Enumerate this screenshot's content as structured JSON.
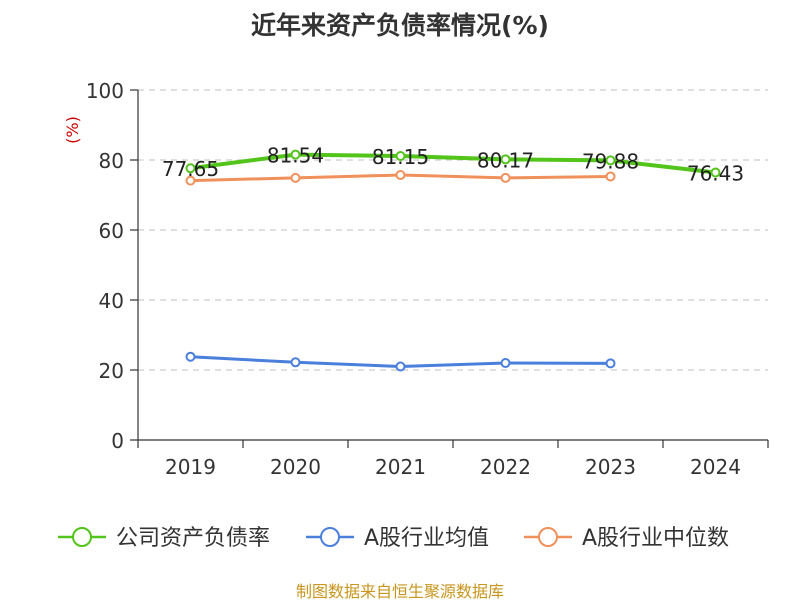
{
  "title": "近年来资产负债率情况(%)",
  "source": "制图数据来自恒生聚源数据库",
  "colors": {
    "company": "#52c41a",
    "industry_avg": "#4a7fdc",
    "industry_median": "#f0905a",
    "grid": "#cccccc",
    "axis": "#333333",
    "unit": "#cc0000",
    "source": "#c8961e"
  },
  "chart_data": {
    "type": "line",
    "title": "近年来资产负债率情况(%)",
    "ylabel": "(%)",
    "xlabel": "",
    "ylim": [
      0,
      100
    ],
    "yticks": [
      "0",
      "20",
      "40",
      "60",
      "80",
      "100"
    ],
    "grid": "horizontal-dashed",
    "legend_position": "bottom",
    "categories": [
      "2019",
      "2020",
      "2021",
      "2022",
      "2023",
      "2024"
    ],
    "series": [
      {
        "name": "公司资产负债率",
        "values": [
          77.65,
          81.54,
          81.15,
          80.17,
          79.88,
          76.43
        ],
        "labels": [
          "77.65",
          "81.54",
          "81.15",
          "80.17",
          "79.88",
          "76.43"
        ],
        "show_labels": true
      },
      {
        "name": "A股行业均值",
        "values": [
          23.8,
          22.2,
          21.0,
          22.0,
          21.9,
          null
        ],
        "show_labels": false
      },
      {
        "name": "A股行业中位数",
        "values": [
          74.1,
          74.9,
          75.7,
          74.9,
          75.3,
          null
        ],
        "show_labels": false
      }
    ]
  }
}
